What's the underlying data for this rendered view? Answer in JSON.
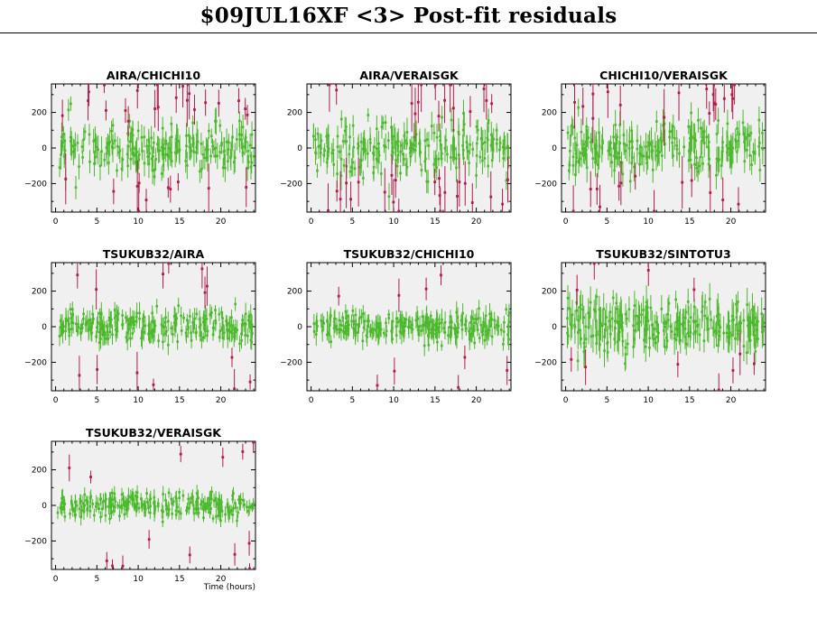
{
  "title": "$09JUL16XF <3> Post-fit residuals",
  "colors": {
    "plot_background": "#f0f0f0",
    "good_points": "#4cb82c",
    "outlier_points": "#b01c4a"
  },
  "chart_data": [
    {
      "type": "scatter",
      "title": "AIRA/CHICHI10",
      "xlabel": "",
      "ylabel": "",
      "xlim": [
        -0.5,
        24.2
      ],
      "ylim": [
        -360,
        360
      ],
      "xticks": [
        0,
        5,
        10,
        15,
        20
      ],
      "yticks": [
        -200,
        0,
        200
      ],
      "x_tick_labels": [
        "0",
        "5",
        "10",
        "15",
        "20"
      ],
      "y_tick_labels": [
        "−200",
        "0",
        "200"
      ],
      "series": [
        {
          "values": {
            "count": 210,
            "center": 0,
            "spread": 70,
            "error_bar": 60
          }
        },
        {
          "values": {
            "count": 32,
            "error_bar": 90
          }
        }
      ],
      "seed": 11
    },
    {
      "type": "scatter",
      "title": "AIRA/VERAISGK",
      "xlabel": "",
      "ylabel": "",
      "xlim": [
        -0.5,
        24.2
      ],
      "ylim": [
        -360,
        360
      ],
      "xticks": [
        0,
        5,
        10,
        15,
        20
      ],
      "yticks": [
        -200,
        0,
        200
      ],
      "x_tick_labels": [
        "0",
        "5",
        "10",
        "15",
        "20"
      ],
      "y_tick_labels": [
        "−200",
        "0",
        "200"
      ],
      "series": [
        {
          "values": {
            "count": 220,
            "center": 0,
            "spread": 75,
            "error_bar": 60
          }
        },
        {
          "values": {
            "count": 38,
            "error_bar": 95
          }
        }
      ],
      "seed": 23
    },
    {
      "type": "scatter",
      "title": "CHICHI10/VERAISGK",
      "xlabel": "",
      "ylabel": "",
      "xlim": [
        -0.5,
        24.2
      ],
      "ylim": [
        -360,
        360
      ],
      "xticks": [
        0,
        5,
        10,
        15,
        20
      ],
      "yticks": [
        -200,
        0,
        200
      ],
      "x_tick_labels": [
        "0",
        "5",
        "10",
        "15",
        "20"
      ],
      "y_tick_labels": [
        "−200",
        "0",
        "200"
      ],
      "series": [
        {
          "values": {
            "count": 210,
            "center": 0,
            "spread": 75,
            "error_bar": 65
          }
        },
        {
          "values": {
            "count": 30,
            "error_bar": 95
          }
        }
      ],
      "seed": 37
    },
    {
      "type": "scatter",
      "title": "TSUKUB32/AIRA",
      "xlabel": "",
      "ylabel": "",
      "xlim": [
        -0.5,
        24.2
      ],
      "ylim": [
        -360,
        360
      ],
      "xticks": [
        0,
        5,
        10,
        15,
        20
      ],
      "yticks": [
        -200,
        0,
        200
      ],
      "x_tick_labels": [
        "0",
        "5",
        "10",
        "15",
        "20"
      ],
      "y_tick_labels": [
        "−200",
        "0",
        "200"
      ],
      "series": [
        {
          "values": {
            "count": 260,
            "center": 0,
            "spread": 45,
            "error_bar": 45
          }
        },
        {
          "values": {
            "count": 14,
            "error_bar": 70
          }
        }
      ],
      "seed": 41
    },
    {
      "type": "scatter",
      "title": "TSUKUB32/CHICHI10",
      "xlabel": "",
      "ylabel": "",
      "xlim": [
        -0.5,
        24.2
      ],
      "ylim": [
        -360,
        360
      ],
      "xticks": [
        0,
        5,
        10,
        15,
        20
      ],
      "yticks": [
        -200,
        0,
        200
      ],
      "x_tick_labels": [
        "0",
        "5",
        "10",
        "15",
        "20"
      ],
      "y_tick_labels": [
        "−200",
        "0",
        "200"
      ],
      "series": [
        {
          "values": {
            "count": 260,
            "center": 0,
            "spread": 42,
            "error_bar": 45
          }
        },
        {
          "values": {
            "count": 9,
            "error_bar": 70
          }
        }
      ],
      "seed": 53
    },
    {
      "type": "scatter",
      "title": "TSUKUB32/SINTOTU3",
      "xlabel": "",
      "ylabel": "",
      "xlim": [
        -0.5,
        24.2
      ],
      "ylim": [
        -360,
        360
      ],
      "xticks": [
        0,
        5,
        10,
        15,
        20
      ],
      "yticks": [
        -200,
        0,
        200
      ],
      "x_tick_labels": [
        "0",
        "5",
        "10",
        "15",
        "20"
      ],
      "y_tick_labels": [
        "−200",
        "0",
        "200"
      ],
      "series": [
        {
          "values": {
            "count": 250,
            "center": 0,
            "spread": 60,
            "error_bar": 70
          }
        },
        {
          "values": {
            "count": 11,
            "error_bar": 80
          }
        }
      ],
      "seed": 67
    },
    {
      "type": "scatter",
      "title": "TSUKUB32/VERAISGK",
      "xlabel": "Time (hours)",
      "ylabel": "",
      "xlim": [
        -0.5,
        24.2
      ],
      "ylim": [
        -360,
        360
      ],
      "xticks": [
        0,
        5,
        10,
        15,
        20
      ],
      "yticks": [
        -200,
        0,
        200
      ],
      "x_tick_labels": [
        "0",
        "5",
        "10",
        "15",
        "20"
      ],
      "y_tick_labels": [
        "−200",
        "0",
        "200"
      ],
      "series": [
        {
          "values": {
            "count": 250,
            "center": 0,
            "spread": 35,
            "error_bar": 35
          }
        },
        {
          "values": {
            "count": 14,
            "error_bar": 45
          }
        }
      ],
      "seed": 79
    }
  ]
}
